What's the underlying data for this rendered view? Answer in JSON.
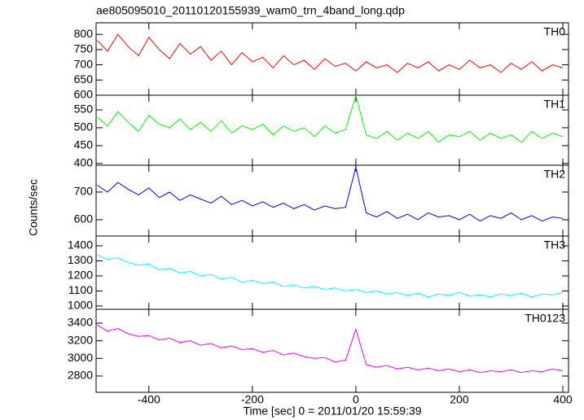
{
  "chart_data": {
    "type": "line",
    "title": "ae805095010_20110120155939_wam0_trn_4band_long.qdp",
    "xlabel": "Time [sec] 0 = 2011/01/20 15:59:39",
    "ylabel": "Counts/sec",
    "x": [
      -500,
      -480,
      -460,
      -440,
      -420,
      -400,
      -380,
      -360,
      -340,
      -320,
      -300,
      -280,
      -260,
      -240,
      -220,
      -200,
      -180,
      -160,
      -140,
      -120,
      -100,
      -80,
      -60,
      -40,
      -20,
      0,
      20,
      40,
      60,
      80,
      100,
      120,
      140,
      160,
      180,
      200,
      220,
      240,
      260,
      280,
      300,
      320,
      340,
      360,
      380,
      400
    ],
    "xlim": [
      -502,
      411
    ],
    "xticks": [
      -400,
      -200,
      0,
      200,
      400
    ],
    "series": [
      {
        "name": "TH0",
        "color": "#ff0000",
        "ylim": [
          600,
          838
        ],
        "yticks": [
          600,
          650,
          700,
          750,
          800
        ],
        "values": [
          780,
          745,
          800,
          760,
          730,
          790,
          750,
          720,
          770,
          735,
          760,
          715,
          745,
          700,
          740,
          710,
          725,
          690,
          730,
          700,
          715,
          685,
          720,
          695,
          705,
          680,
          710,
          690,
          700,
          675,
          705,
          690,
          710,
          680,
          700,
          685,
          715,
          690,
          700,
          675,
          705,
          685,
          710,
          680,
          700,
          690
        ]
      },
      {
        "name": "TH1",
        "color": "#00ff00",
        "ylim": [
          395,
          591
        ],
        "yticks": [
          400,
          450,
          500,
          550
        ],
        "values": [
          530,
          505,
          545,
          515,
          490,
          535,
          510,
          500,
          525,
          495,
          515,
          490,
          520,
          485,
          505,
          495,
          510,
          480,
          505,
          490,
          500,
          475,
          505,
          485,
          495,
          590,
          480,
          470,
          490,
          465,
          485,
          470,
          490,
          460,
          480,
          475,
          490,
          465,
          485,
          470,
          480,
          460,
          490,
          470,
          485,
          475
        ]
      },
      {
        "name": "TH2",
        "color": "#0000ff",
        "ylim": [
          541,
          797
        ],
        "yticks": [
          600,
          700
        ],
        "values": [
          725,
          700,
          735,
          710,
          690,
          715,
          680,
          700,
          670,
          690,
          675,
          660,
          685,
          655,
          670,
          650,
          665,
          645,
          660,
          640,
          655,
          635,
          650,
          640,
          645,
          790,
          625,
          610,
          630,
          605,
          620,
          600,
          625,
          610,
          615,
          600,
          620,
          595,
          615,
          605,
          625,
          600,
          615,
          595,
          610,
          605
        ]
      },
      {
        "name": "TH3",
        "color": "#00ffff",
        "ylim": [
          978,
          1465
        ],
        "yticks": [
          1000,
          1100,
          1200,
          1300,
          1400
        ],
        "values": [
          1340,
          1310,
          1320,
          1290,
          1270,
          1280,
          1240,
          1250,
          1220,
          1230,
          1200,
          1210,
          1180,
          1190,
          1160,
          1170,
          1150,
          1160,
          1130,
          1140,
          1120,
          1130,
          1110,
          1120,
          1100,
          1110,
          1090,
          1100,
          1080,
          1090,
          1070,
          1085,
          1060,
          1080,
          1070,
          1090,
          1065,
          1075,
          1060,
          1080,
          1070,
          1085,
          1060,
          1080,
          1075,
          1090
        ]
      },
      {
        "name": "TH0123",
        "color": "#ff00ff",
        "ylim": [
          2615,
          3557
        ],
        "yticks": [
          2800,
          3000,
          3200,
          3400
        ],
        "values": [
          3380,
          3310,
          3340,
          3280,
          3250,
          3260,
          3210,
          3230,
          3180,
          3200,
          3150,
          3170,
          3120,
          3140,
          3100,
          3110,
          3070,
          3090,
          3040,
          3060,
          3020,
          3000,
          3010,
          2960,
          2980,
          3330,
          2930,
          2900,
          2920,
          2880,
          2900,
          2870,
          2890,
          2860,
          2880,
          2850,
          2870,
          2840,
          2860,
          2850,
          2870,
          2840,
          2860,
          2850,
          2880,
          2860
        ]
      }
    ]
  }
}
